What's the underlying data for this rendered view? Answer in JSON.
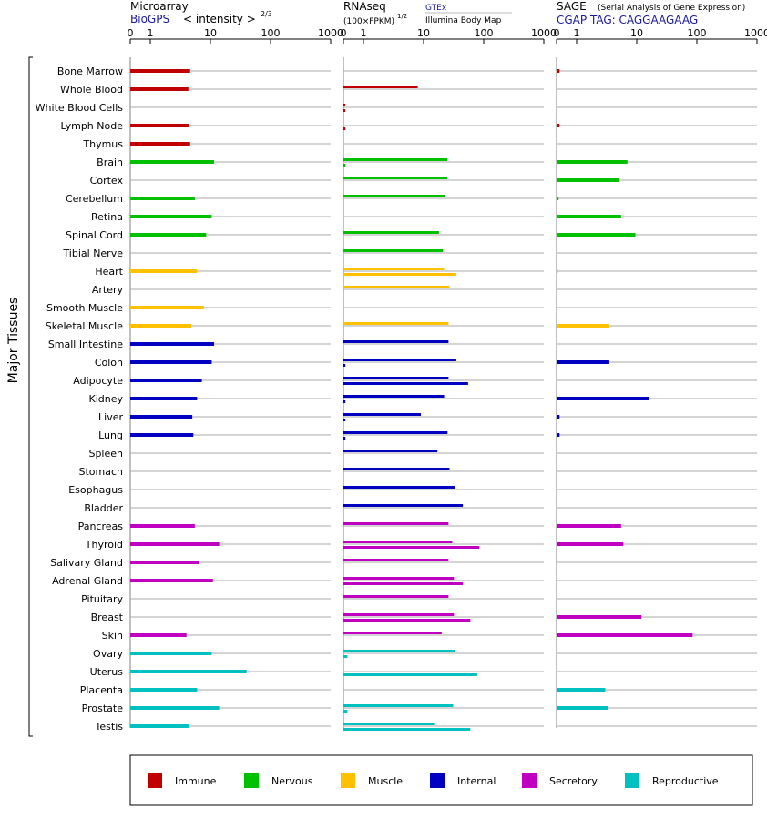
{
  "chart_data": {
    "type": "bar",
    "ylabel": "Major Tissues",
    "tick_labels": [
      "0",
      "1",
      "10",
      "100",
      "1000"
    ],
    "tissues": [
      {
        "name": "Bone Marrow",
        "group": "immune"
      },
      {
        "name": "Whole Blood",
        "group": "immune"
      },
      {
        "name": "White Blood Cells",
        "group": "immune"
      },
      {
        "name": "Lymph Node",
        "group": "immune"
      },
      {
        "name": "Thymus",
        "group": "immune"
      },
      {
        "name": "Brain",
        "group": "nervous"
      },
      {
        "name": "Cortex",
        "group": "nervous"
      },
      {
        "name": "Cerebellum",
        "group": "nervous"
      },
      {
        "name": "Retina",
        "group": "nervous"
      },
      {
        "name": "Spinal Cord",
        "group": "nervous"
      },
      {
        "name": "Tibial Nerve",
        "group": "nervous"
      },
      {
        "name": "Heart",
        "group": "muscle"
      },
      {
        "name": "Artery",
        "group": "muscle"
      },
      {
        "name": "Smooth Muscle",
        "group": "muscle"
      },
      {
        "name": "Skeletal Muscle",
        "group": "muscle"
      },
      {
        "name": "Small Intestine",
        "group": "internal"
      },
      {
        "name": "Colon",
        "group": "internal"
      },
      {
        "name": "Adipocyte",
        "group": "internal"
      },
      {
        "name": "Kidney",
        "group": "internal"
      },
      {
        "name": "Liver",
        "group": "internal"
      },
      {
        "name": "Lung",
        "group": "internal"
      },
      {
        "name": "Spleen",
        "group": "internal"
      },
      {
        "name": "Stomach",
        "group": "internal"
      },
      {
        "name": "Esophagus",
        "group": "internal"
      },
      {
        "name": "Bladder",
        "group": "internal"
      },
      {
        "name": "Pancreas",
        "group": "secretory"
      },
      {
        "name": "Thyroid",
        "group": "secretory"
      },
      {
        "name": "Salivary Gland",
        "group": "secretory"
      },
      {
        "name": "Adrenal Gland",
        "group": "secretory"
      },
      {
        "name": "Pituitary",
        "group": "secretory"
      },
      {
        "name": "Breast",
        "group": "secretory"
      },
      {
        "name": "Skin",
        "group": "secretory"
      },
      {
        "name": "Ovary",
        "group": "reproductive"
      },
      {
        "name": "Uterus",
        "group": "reproductive"
      },
      {
        "name": "Placenta",
        "group": "reproductive"
      },
      {
        "name": "Prostate",
        "group": "reproductive"
      },
      {
        "name": "Testis",
        "group": "reproductive"
      }
    ],
    "panels": [
      {
        "key": "microarray",
        "title": "Microarray",
        "subtitle": "BioGPS",
        "scale_note": "< intensity >",
        "scale_exp": "2/3",
        "values": [
          [
            4.6
          ],
          [
            4.3
          ],
          [
            null
          ],
          [
            4.4
          ],
          [
            4.6
          ],
          [
            11.5
          ],
          [
            null
          ],
          [
            5.5
          ],
          [
            10.5
          ],
          [
            8.5
          ],
          [
            null
          ],
          [
            6.0
          ],
          [
            null
          ],
          [
            7.8
          ],
          [
            4.8
          ],
          [
            11.5
          ],
          [
            10.5
          ],
          [
            7.2
          ],
          [
            6.0
          ],
          [
            5.0
          ],
          [
            5.2
          ],
          [
            null
          ],
          [
            null
          ],
          [
            null
          ],
          [
            null
          ],
          [
            5.5
          ],
          [
            14.0
          ],
          [
            6.5
          ],
          [
            11.0
          ],
          [
            null
          ],
          [
            null
          ],
          [
            4.0
          ],
          [
            10.5
          ],
          [
            40.0
          ],
          [
            6.0
          ],
          [
            14.0
          ],
          [
            4.4
          ]
        ]
      },
      {
        "key": "rnaseq",
        "title": "RNAseq",
        "subtitle": "GTEx",
        "subtitle2": "Illumina Body Map",
        "scale_note": "(100×FPKM)",
        "scale_exp": "1/2",
        "values": [
          [
            null,
            null
          ],
          [
            8.0,
            null
          ],
          [
            0.1,
            0.1
          ],
          [
            null,
            0.1
          ],
          [
            null,
            null
          ],
          [
            25,
            0.1
          ],
          [
            25,
            null
          ],
          [
            23,
            null
          ],
          [
            null,
            null
          ],
          [
            18,
            null
          ],
          [
            21,
            null
          ],
          [
            22,
            35
          ],
          [
            27,
            null
          ],
          [
            null,
            null
          ],
          [
            26,
            null
          ],
          [
            26,
            null
          ],
          [
            35,
            0.1
          ],
          [
            26,
            55
          ],
          [
            22,
            0.1
          ],
          [
            9,
            0.1
          ],
          [
            25,
            0.1
          ],
          [
            17,
            null
          ],
          [
            27,
            null
          ],
          [
            33,
            null
          ],
          [
            45,
            null
          ],
          [
            26,
            null
          ],
          [
            30,
            85
          ],
          [
            26,
            null
          ],
          [
            32,
            45
          ],
          [
            26,
            null
          ],
          [
            32,
            60
          ],
          [
            20,
            null
          ],
          [
            33,
            0.2
          ],
          [
            null,
            78
          ],
          [
            null,
            null
          ],
          [
            31,
            0.2
          ],
          [
            15,
            60
          ]
        ]
      },
      {
        "key": "sage",
        "title": "SAGE",
        "title_note": "(Serial Analysis of Gene Expression)",
        "subtitle": "CGAP TAG: CAGGAAGAAG",
        "values": [
          [
            0.15
          ],
          [
            null
          ],
          [
            null
          ],
          [
            0.15
          ],
          [
            null
          ],
          [
            7.0
          ],
          [
            5.0
          ],
          [
            0.1
          ],
          [
            5.5
          ],
          [
            9.5
          ],
          [
            null
          ],
          [
            0.05
          ],
          [
            null
          ],
          [
            null
          ],
          [
            3.5
          ],
          [
            null
          ],
          [
            3.5
          ],
          [
            null
          ],
          [
            16.0
          ],
          [
            0.15
          ],
          [
            0.15
          ],
          [
            null
          ],
          [
            null
          ],
          [
            null
          ],
          [
            null
          ],
          [
            5.5
          ],
          [
            6.0
          ],
          [
            null
          ],
          [
            null
          ],
          [
            null
          ],
          [
            12.0
          ],
          [
            85.0
          ],
          [
            null
          ],
          [
            null
          ],
          [
            3.0
          ],
          [
            3.3
          ],
          [
            null
          ]
        ]
      }
    ],
    "groups": [
      {
        "key": "immune",
        "label": "Immune",
        "color": "#c00000"
      },
      {
        "key": "nervous",
        "label": "Nervous",
        "color": "#00c000"
      },
      {
        "key": "muscle",
        "label": "Muscle",
        "color": "#ffc000"
      },
      {
        "key": "internal",
        "label": "Internal",
        "color": "#0000c0"
      },
      {
        "key": "secretory",
        "label": "Secretory",
        "color": "#c000c0"
      },
      {
        "key": "reproductive",
        "label": "Reproductive",
        "color": "#00c0c0"
      }
    ],
    "xlim": [
      0,
      1000
    ],
    "grid": true,
    "legend_position": "bottom"
  }
}
